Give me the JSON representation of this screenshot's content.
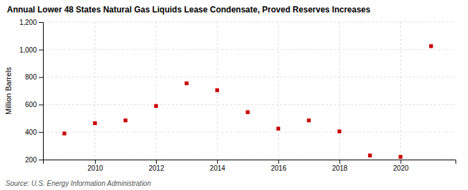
{
  "chart_data": {
    "type": "scatter",
    "title": "Annual Lower 48 States Natural Gas Liquids Lease Condensate, Proved Reserves Increases",
    "ylabel": "Million Barrels",
    "source": "Source: U.S. Energy Information Administration",
    "x": [
      2009,
      2010,
      2011,
      2012,
      2013,
      2014,
      2015,
      2016,
      2017,
      2018,
      2019,
      2020,
      2021
    ],
    "values": [
      390,
      465,
      485,
      590,
      755,
      705,
      545,
      425,
      485,
      405,
      230,
      220,
      1025
    ],
    "color": "#cc0000",
    "marker": "square",
    "grid": true,
    "xlim": [
      2008.3,
      2021.8
    ],
    "xticks": [
      2010,
      2012,
      2014,
      2016,
      2018,
      2020
    ],
    "ylim": [
      200,
      1200
    ],
    "yticks": [
      200,
      400,
      600,
      800,
      {
        "value": 1000,
        "label": "1,000"
      },
      {
        "value": 1200,
        "label": "1,200"
      }
    ]
  }
}
